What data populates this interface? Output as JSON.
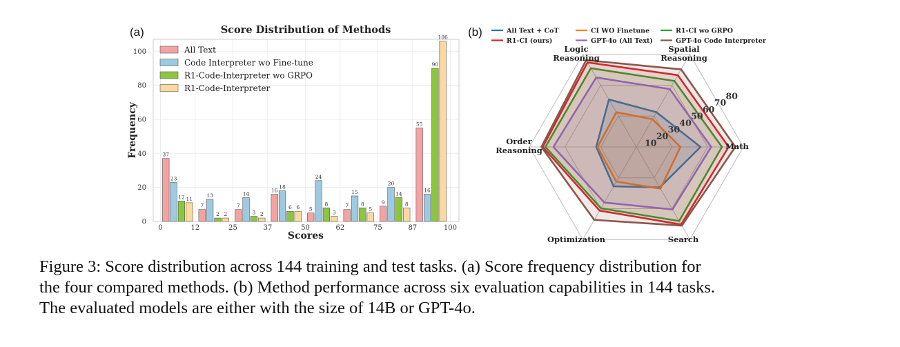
{
  "panel_a_label": "(a)",
  "panel_b_label": "(b)",
  "caption": [
    "Figure 3: Score distribution across 144 training and test tasks. (a) Score frequency distribution for",
    "the four compared methods. (b) Method performance across six evaluation capabilities in 144 tasks.",
    "The evaluated models are either with the size of 14B or GPT-4o."
  ],
  "colors": {
    "all_text": "#f4a3a3",
    "ci_wo_finetune": "#9ecae1",
    "r1_wo_grpo": "#8cc63f",
    "r1_ci": "#fdd9a0"
  },
  "chart_data": [
    {
      "type": "bar",
      "title": "Score Distribution of Methods",
      "xlabel": "Scores",
      "ylabel": "Frequency",
      "ylim": [
        0,
        107
      ],
      "yticks": [
        "0",
        "20",
        "40",
        "60",
        "80",
        "100"
      ],
      "xticks": [
        "0",
        "12",
        "25",
        "37",
        "50",
        "62",
        "75",
        "87",
        "100"
      ],
      "legend_position": "top-left",
      "grid": true,
      "categories": [
        "0-12",
        "12-25",
        "25-37",
        "37-50",
        "50-62",
        "62-75",
        "75-87",
        "87-100"
      ],
      "series": [
        {
          "name": "All Text",
          "color": "#f4a3a3",
          "values": [
            37,
            7,
            7,
            16,
            5,
            7,
            9,
            55
          ]
        },
        {
          "name": "Code Interpreter wo Fine-tune",
          "color": "#9ecae1",
          "values": [
            23,
            13,
            14,
            18,
            24,
            15,
            20,
            16
          ]
        },
        {
          "name": "R1-Code-Interpreter wo GRPO",
          "color": "#8cc63f",
          "values": [
            12,
            2,
            3,
            6,
            8,
            8,
            14,
            90
          ]
        },
        {
          "name": "R1-Code-Interpreter",
          "color": "#fdd9a0",
          "values": [
            11,
            2,
            2,
            6,
            3,
            5,
            8,
            106
          ]
        }
      ]
    },
    {
      "type": "radar",
      "axes": [
        "Math",
        "Spatial\nReasoning",
        "Logic\nReasoning",
        "Order\nReasoning",
        "Optimization",
        "Search"
      ],
      "rlim": [
        0,
        80
      ],
      "rticks": [
        "10",
        "20",
        "30",
        "40",
        "50",
        "60",
        "70",
        "80"
      ],
      "legend_position": "top",
      "series": [
        {
          "name": "All Text + CoT",
          "color": "#1f77b4",
          "values": [
            48,
            30,
            41,
            30,
            34,
            35
          ]
        },
        {
          "name": "CI WO Finetune",
          "color": "#ff7f0e",
          "values": [
            33,
            24,
            30,
            29,
            30,
            36
          ]
        },
        {
          "name": "R1-CI wo GRPO",
          "color": "#2ca02c",
          "values": [
            64,
            57,
            68,
            68,
            53,
            64
          ]
        },
        {
          "name": "R1-CI (ours)",
          "color": "#d62728",
          "values": [
            69,
            62,
            73,
            70,
            55,
            67
          ]
        },
        {
          "name": "GPT-4o (All Text)",
          "color": "#9467bd",
          "values": [
            56,
            50,
            60,
            62,
            48,
            54
          ]
        },
        {
          "name": "GPT-4o Code Interpreter",
          "color": "#8c564b",
          "values": [
            74,
            67,
            75,
            71,
            63,
            68
          ]
        }
      ]
    }
  ]
}
